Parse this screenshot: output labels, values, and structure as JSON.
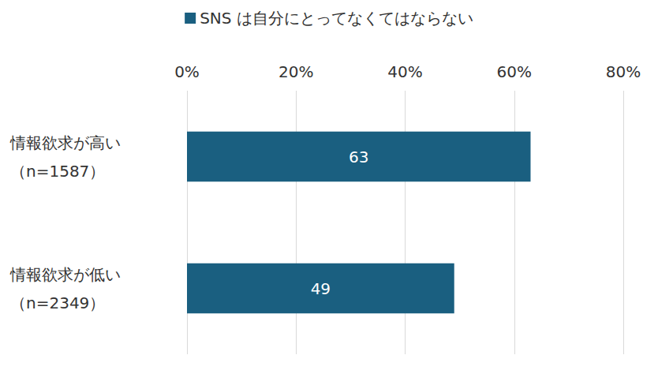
{
  "chart_data": {
    "type": "bar",
    "orientation": "horizontal",
    "categories": [
      "情報欲求が高い\n（n=1587）",
      "情報欲求が低い\n（n=2349）"
    ],
    "series": [
      {
        "name": "SNS は自分にとってなくてはならない",
        "color": "#1a5f80",
        "values": [
          63,
          49
        ]
      }
    ],
    "xlim": [
      0,
      80
    ],
    "xticks": [
      {
        "value": 0,
        "label": "0%"
      },
      {
        "value": 20,
        "label": "20%"
      },
      {
        "value": 40,
        "label": "40%"
      },
      {
        "value": 60,
        "label": "60%"
      },
      {
        "value": 80,
        "label": "80%"
      }
    ],
    "grid": true,
    "data_labels": true,
    "legend": "top"
  }
}
